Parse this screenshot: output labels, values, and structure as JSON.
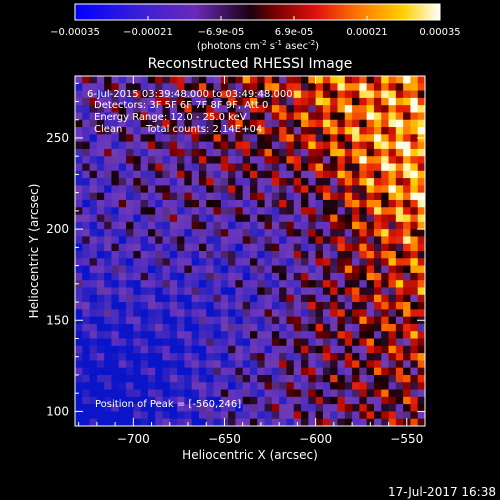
{
  "colorbar": {
    "ticks": [
      "-0.00035",
      "-0.00021",
      "-6.9e-05",
      "6.9e-05",
      "0.00021",
      "0.00035"
    ],
    "units": "(photons cm",
    "units_exp1": "-2",
    "units_mid": " s",
    "units_exp2": "-1",
    "units_end": " asec",
    "units_exp3": "-2",
    "units_close": ")"
  },
  "annotations": {
    "time_range": "6-Jul-2015 03:39:48.000 to 03:49:48.000",
    "detectors": "Detectors: 3F 5F 6F 7F 8F 9F, Att 0",
    "energy_range": "Energy Range: 12.0 - 25.0 keV",
    "clean": "Clean",
    "total_counts": "Total counts: 2.14E+04",
    "peak_position": "Position of Peak = [-560,246]"
  },
  "footer": {
    "timestamp": "17-Jul-2017 16:38"
  },
  "chart_data": {
    "type": "heatmap",
    "title": "Reconstructed RHESSI Image",
    "xlabel": "Heliocentric X (arcsec)",
    "ylabel": "Heliocentric Y (arcsec)",
    "xlim": [
      -732,
      -540
    ],
    "ylim": [
      92,
      284
    ],
    "xticks": [
      -700,
      -650,
      -600,
      -550
    ],
    "yticks": [
      100,
      150,
      200,
      250
    ],
    "xtick_labels": [
      "−700",
      "−650",
      "−600",
      "−550"
    ],
    "ytick_labels": [
      "100",
      "150",
      "200",
      "250"
    ],
    "value_range": [
      -0.00035,
      0.00035
    ],
    "peak": [
      -560,
      246
    ],
    "colormap": "blue-purple-black-red-orange-yellow-white"
  }
}
